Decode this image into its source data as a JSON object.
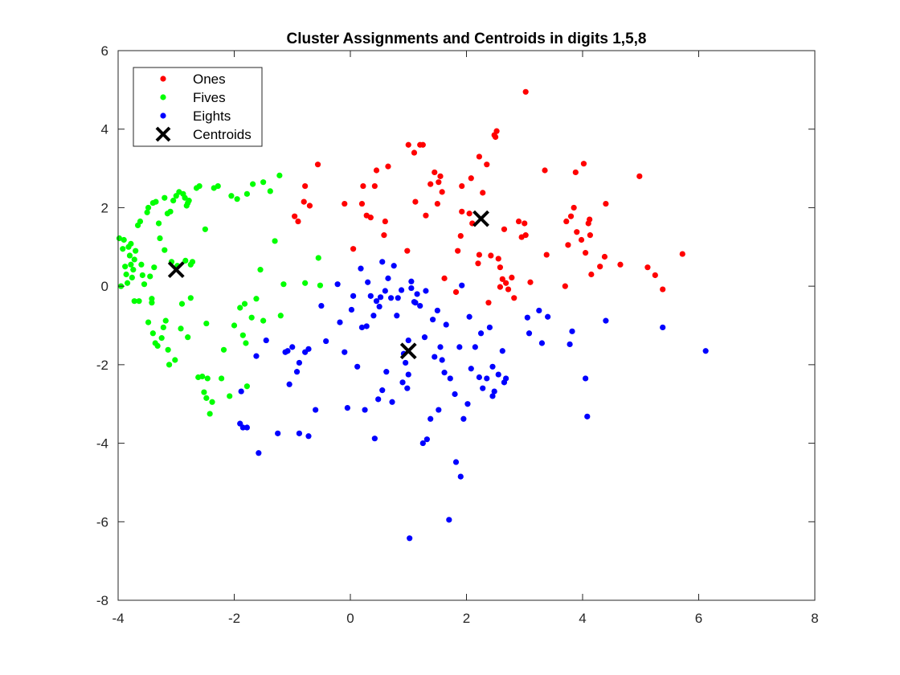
{
  "chart_data": {
    "type": "scatter",
    "title": "Cluster Assignments and Centroids in digits 1,5,8",
    "xlabel": "",
    "ylabel": "",
    "xlim": [
      -4,
      8
    ],
    "ylim": [
      -8,
      6
    ],
    "xticks": [
      -4,
      -2,
      0,
      2,
      4,
      6,
      8
    ],
    "yticks": [
      -8,
      -6,
      -4,
      -2,
      0,
      2,
      4,
      6
    ],
    "grid": false,
    "legend_position": "top-left",
    "series": [
      {
        "name": "Ones",
        "color": "#ff0000",
        "marker": "dot",
        "points": [
          [
            -0.56,
            3.1
          ],
          [
            -0.96,
            1.78
          ],
          [
            -0.9,
            1.65
          ],
          [
            -0.8,
            2.15
          ],
          [
            -0.7,
            2.05
          ],
          [
            -0.78,
            2.55
          ],
          [
            -0.1,
            2.1
          ],
          [
            0.05,
            0.95
          ],
          [
            0.2,
            2.1
          ],
          [
            0.22,
            2.55
          ],
          [
            0.28,
            1.8
          ],
          [
            0.35,
            1.75
          ],
          [
            0.42,
            2.55
          ],
          [
            0.45,
            2.95
          ],
          [
            0.58,
            1.3
          ],
          [
            0.6,
            1.65
          ],
          [
            0.65,
            3.05
          ],
          [
            1.0,
            3.6
          ],
          [
            0.98,
            0.9
          ],
          [
            1.1,
            3.4
          ],
          [
            1.12,
            2.15
          ],
          [
            1.2,
            3.6
          ],
          [
            1.25,
            3.6
          ],
          [
            1.3,
            1.8
          ],
          [
            1.38,
            2.6
          ],
          [
            1.45,
            2.9
          ],
          [
            1.5,
            2.1
          ],
          [
            1.52,
            2.65
          ],
          [
            1.55,
            2.8
          ],
          [
            1.58,
            2.4
          ],
          [
            1.62,
            0.2
          ],
          [
            1.82,
            -0.15
          ],
          [
            1.85,
            0.9
          ],
          [
            1.9,
            1.28
          ],
          [
            1.92,
            2.55
          ],
          [
            1.92,
            1.9
          ],
          [
            2.05,
            1.85
          ],
          [
            2.08,
            2.75
          ],
          [
            2.1,
            1.6
          ],
          [
            2.22,
            3.3
          ],
          [
            2.2,
            0.58
          ],
          [
            2.22,
            0.8
          ],
          [
            2.28,
            2.38
          ],
          [
            2.35,
            3.1
          ],
          [
            2.38,
            -0.42
          ],
          [
            2.42,
            0.78
          ],
          [
            2.48,
            3.85
          ],
          [
            2.5,
            3.8
          ],
          [
            2.52,
            3.95
          ],
          [
            2.55,
            0.7
          ],
          [
            2.58,
            0.48
          ],
          [
            2.58,
            -0.02
          ],
          [
            2.62,
            0.18
          ],
          [
            2.65,
            1.45
          ],
          [
            2.68,
            0.08
          ],
          [
            2.72,
            -0.08
          ],
          [
            2.78,
            0.22
          ],
          [
            2.82,
            -0.3
          ],
          [
            2.9,
            1.65
          ],
          [
            2.95,
            1.25
          ],
          [
            3.02,
            1.3
          ],
          [
            3.0,
            1.6
          ],
          [
            3.02,
            4.95
          ],
          [
            3.1,
            0.1
          ],
          [
            3.35,
            2.95
          ],
          [
            3.38,
            0.8
          ],
          [
            3.7,
            0.0
          ],
          [
            3.72,
            1.65
          ],
          [
            3.75,
            1.05
          ],
          [
            3.8,
            1.78
          ],
          [
            3.85,
            2.0
          ],
          [
            3.88,
            2.9
          ],
          [
            3.9,
            1.38
          ],
          [
            3.98,
            1.18
          ],
          [
            4.02,
            3.12
          ],
          [
            4.05,
            0.85
          ],
          [
            4.1,
            1.6
          ],
          [
            4.12,
            1.7
          ],
          [
            4.13,
            1.3
          ],
          [
            4.15,
            0.3
          ],
          [
            4.3,
            0.5
          ],
          [
            4.38,
            0.75
          ],
          [
            4.4,
            2.1
          ],
          [
            4.65,
            0.55
          ],
          [
            4.98,
            2.8
          ],
          [
            5.12,
            0.48
          ],
          [
            5.25,
            0.28
          ],
          [
            5.38,
            -0.08
          ],
          [
            5.72,
            0.82
          ]
        ]
      },
      {
        "name": "Fives",
        "color": "#00ff00",
        "marker": "dot",
        "points": [
          [
            -3.95,
            0.0
          ],
          [
            -3.98,
            1.22
          ],
          [
            -3.9,
            1.18
          ],
          [
            -3.92,
            0.95
          ],
          [
            -3.88,
            0.5
          ],
          [
            -3.86,
            0.3
          ],
          [
            -3.84,
            0.08
          ],
          [
            -3.82,
            1.0
          ],
          [
            -3.8,
            0.78
          ],
          [
            -3.78,
            0.55
          ],
          [
            -3.78,
            1.08
          ],
          [
            -3.76,
            0.22
          ],
          [
            -3.74,
            0.42
          ],
          [
            -3.72,
            0.68
          ],
          [
            -3.72,
            -0.38
          ],
          [
            -3.7,
            0.9
          ],
          [
            -3.66,
            1.55
          ],
          [
            -3.64,
            -0.38
          ],
          [
            -3.62,
            1.65
          ],
          [
            -3.6,
            0.55
          ],
          [
            -3.58,
            0.28
          ],
          [
            -3.55,
            0.05
          ],
          [
            -3.5,
            1.88
          ],
          [
            -3.48,
            -0.92
          ],
          [
            -3.48,
            2.0
          ],
          [
            -3.45,
            0.25
          ],
          [
            -3.42,
            -0.32
          ],
          [
            -3.42,
            -0.42
          ],
          [
            -3.4,
            2.12
          ],
          [
            -3.4,
            -1.2
          ],
          [
            -3.38,
            0.48
          ],
          [
            -3.36,
            -1.45
          ],
          [
            -3.35,
            2.15
          ],
          [
            -3.32,
            -1.52
          ],
          [
            -3.3,
            1.6
          ],
          [
            -3.28,
            1.22
          ],
          [
            -3.25,
            -1.32
          ],
          [
            -3.22,
            -1.05
          ],
          [
            -3.2,
            0.92
          ],
          [
            -3.2,
            2.25
          ],
          [
            -3.18,
            -0.88
          ],
          [
            -3.15,
            1.85
          ],
          [
            -3.14,
            -1.62
          ],
          [
            -3.12,
            -2.0
          ],
          [
            -3.1,
            1.9
          ],
          [
            -3.08,
            0.62
          ],
          [
            -3.05,
            2.18
          ],
          [
            -3.02,
            -1.88
          ],
          [
            -3.0,
            2.3
          ],
          [
            -2.98,
            0.52
          ],
          [
            -2.95,
            2.4
          ],
          [
            -2.92,
            -1.08
          ],
          [
            -2.9,
            -0.45
          ],
          [
            -2.88,
            2.35
          ],
          [
            -2.85,
            2.25
          ],
          [
            -2.84,
            0.65
          ],
          [
            -2.82,
            2.05
          ],
          [
            -2.8,
            -1.3
          ],
          [
            -2.8,
            2.12
          ],
          [
            -2.78,
            2.18
          ],
          [
            -2.75,
            0.55
          ],
          [
            -2.75,
            -0.3
          ],
          [
            -2.72,
            0.62
          ],
          [
            -2.65,
            2.5
          ],
          [
            -2.62,
            -2.32
          ],
          [
            -2.6,
            2.55
          ],
          [
            -2.55,
            -2.3
          ],
          [
            -2.52,
            -2.7
          ],
          [
            -2.5,
            1.45
          ],
          [
            -2.48,
            -0.95
          ],
          [
            -2.48,
            -2.85
          ],
          [
            -2.46,
            -2.35
          ],
          [
            -2.42,
            -3.25
          ],
          [
            -2.38,
            -2.95
          ],
          [
            -2.35,
            2.5
          ],
          [
            -2.28,
            2.55
          ],
          [
            -2.22,
            -2.35
          ],
          [
            -2.18,
            -1.62
          ],
          [
            -2.08,
            -2.8
          ],
          [
            -2.05,
            2.3
          ],
          [
            -2.0,
            -1.0
          ],
          [
            -1.95,
            2.22
          ],
          [
            -1.9,
            -0.55
          ],
          [
            -1.85,
            -1.25
          ],
          [
            -1.82,
            -0.45
          ],
          [
            -1.8,
            -1.45
          ],
          [
            -1.78,
            -2.55
          ],
          [
            -1.78,
            2.35
          ],
          [
            -1.7,
            -0.8
          ],
          [
            -1.68,
            2.6
          ],
          [
            -1.62,
            -0.32
          ],
          [
            -1.55,
            0.42
          ],
          [
            -1.5,
            -0.88
          ],
          [
            -1.5,
            2.65
          ],
          [
            -1.38,
            2.42
          ],
          [
            -1.3,
            1.15
          ],
          [
            -1.22,
            2.82
          ],
          [
            -1.2,
            -0.75
          ],
          [
            -1.15,
            0.05
          ],
          [
            -0.78,
            0.08
          ],
          [
            -0.52,
            0.02
          ],
          [
            -0.55,
            0.72
          ]
        ]
      },
      {
        "name": "Eights",
        "color": "#0000ff",
        "marker": "dot",
        "points": [
          [
            -1.9,
            -3.5
          ],
          [
            -1.85,
            -3.6
          ],
          [
            -1.78,
            -3.6
          ],
          [
            -1.88,
            -2.68
          ],
          [
            -1.62,
            -1.78
          ],
          [
            -1.58,
            -4.25
          ],
          [
            -1.45,
            -1.38
          ],
          [
            -1.25,
            -3.75
          ],
          [
            -1.12,
            -1.68
          ],
          [
            -1.08,
            -1.65
          ],
          [
            -1.05,
            -2.5
          ],
          [
            -1.0,
            -1.55
          ],
          [
            -0.92,
            -2.18
          ],
          [
            -0.88,
            -1.95
          ],
          [
            -0.88,
            -3.75
          ],
          [
            -0.78,
            -1.68
          ],
          [
            -0.72,
            -3.82
          ],
          [
            -0.72,
            -1.6
          ],
          [
            -0.6,
            -3.15
          ],
          [
            -0.5,
            -0.5
          ],
          [
            -0.42,
            -1.4
          ],
          [
            -0.22,
            0.05
          ],
          [
            -0.18,
            -0.92
          ],
          [
            -0.1,
            -1.68
          ],
          [
            -0.05,
            -3.1
          ],
          [
            0.02,
            -0.6
          ],
          [
            0.05,
            -0.25
          ],
          [
            0.12,
            -2.05
          ],
          [
            0.18,
            0.45
          ],
          [
            0.2,
            -1.05
          ],
          [
            0.25,
            -3.15
          ],
          [
            0.28,
            -1.02
          ],
          [
            0.3,
            0.1
          ],
          [
            0.35,
            -0.25
          ],
          [
            0.4,
            -0.75
          ],
          [
            0.42,
            -3.88
          ],
          [
            0.45,
            -0.38
          ],
          [
            0.48,
            -2.88
          ],
          [
            0.5,
            -0.52
          ],
          [
            0.52,
            -0.28
          ],
          [
            0.55,
            -2.65
          ],
          [
            0.55,
            0.62
          ],
          [
            0.6,
            -0.12
          ],
          [
            0.62,
            -2.18
          ],
          [
            0.65,
            0.2
          ],
          [
            0.7,
            -0.3
          ],
          [
            0.72,
            -2.95
          ],
          [
            0.75,
            0.52
          ],
          [
            0.8,
            -0.75
          ],
          [
            0.82,
            -0.3
          ],
          [
            0.88,
            -0.1
          ],
          [
            0.9,
            -2.45
          ],
          [
            0.92,
            -1.72
          ],
          [
            0.95,
            -1.95
          ],
          [
            0.98,
            -2.6
          ],
          [
            1.0,
            -1.38
          ],
          [
            1.0,
            -2.25
          ],
          [
            1.02,
            -6.42
          ],
          [
            1.05,
            -0.05
          ],
          [
            1.05,
            0.12
          ],
          [
            1.1,
            -0.4
          ],
          [
            1.12,
            -0.42
          ],
          [
            1.15,
            -0.2
          ],
          [
            1.2,
            -0.5
          ],
          [
            1.25,
            -4.0
          ],
          [
            1.28,
            -1.3
          ],
          [
            1.3,
            -0.12
          ],
          [
            1.32,
            -3.9
          ],
          [
            1.38,
            -3.38
          ],
          [
            1.42,
            -0.85
          ],
          [
            1.45,
            -1.8
          ],
          [
            1.5,
            -0.62
          ],
          [
            1.52,
            -3.15
          ],
          [
            1.55,
            -1.55
          ],
          [
            1.58,
            -1.88
          ],
          [
            1.62,
            -2.2
          ],
          [
            1.65,
            -0.98
          ],
          [
            1.7,
            -5.95
          ],
          [
            1.72,
            -2.35
          ],
          [
            1.8,
            -2.75
          ],
          [
            1.82,
            -4.48
          ],
          [
            1.88,
            -1.55
          ],
          [
            1.9,
            -4.85
          ],
          [
            1.92,
            0.02
          ],
          [
            1.95,
            -3.38
          ],
          [
            2.02,
            -3.0
          ],
          [
            2.05,
            -0.78
          ],
          [
            2.08,
            -2.1
          ],
          [
            2.15,
            -1.55
          ],
          [
            2.22,
            -2.32
          ],
          [
            2.25,
            -1.2
          ],
          [
            2.28,
            -2.6
          ],
          [
            2.35,
            -2.35
          ],
          [
            2.4,
            -1.05
          ],
          [
            2.45,
            -2.8
          ],
          [
            2.45,
            -2.05
          ],
          [
            2.48,
            -2.68
          ],
          [
            2.55,
            -2.25
          ],
          [
            2.62,
            -1.65
          ],
          [
            2.65,
            -2.45
          ],
          [
            2.68,
            -2.35
          ],
          [
            3.05,
            -0.8
          ],
          [
            3.08,
            -1.2
          ],
          [
            3.25,
            -0.62
          ],
          [
            3.3,
            -1.45
          ],
          [
            3.4,
            -0.78
          ],
          [
            3.78,
            -1.48
          ],
          [
            3.82,
            -1.15
          ],
          [
            4.05,
            -2.35
          ],
          [
            4.08,
            -3.32
          ],
          [
            4.4,
            -0.88
          ],
          [
            5.38,
            -1.05
          ],
          [
            6.12,
            -1.65
          ]
        ]
      },
      {
        "name": "Centroids",
        "color": "#000000",
        "marker": "x",
        "points": [
          [
            2.25,
            1.72
          ],
          [
            -3.0,
            0.42
          ],
          [
            1.0,
            -1.65
          ]
        ]
      }
    ]
  }
}
